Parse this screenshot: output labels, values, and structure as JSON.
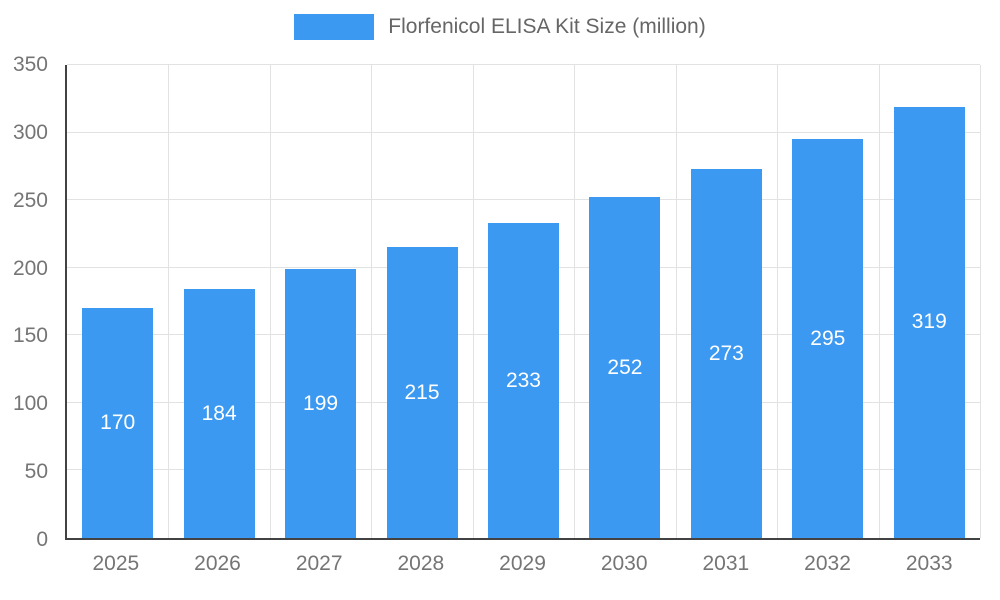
{
  "chart_data": {
    "type": "bar",
    "title": "Florfenicol ELISA Kit Size (million)",
    "categories": [
      "2025",
      "2026",
      "2027",
      "2028",
      "2029",
      "2030",
      "2031",
      "2032",
      "2033"
    ],
    "values": [
      170,
      184,
      199,
      215,
      233,
      252,
      273,
      295,
      319
    ],
    "xlabel": "",
    "ylabel": "",
    "ylim": [
      0,
      350
    ],
    "yticks": [
      0,
      50,
      100,
      150,
      200,
      250,
      300,
      350
    ],
    "grid": true,
    "legend_position": "top",
    "bar_color": "#3B99F1",
    "value_label_color": "#ffffff",
    "axis_text_color": "#757575",
    "axis_line_color": "#424242",
    "gridline_color": "#e2e2e2"
  }
}
